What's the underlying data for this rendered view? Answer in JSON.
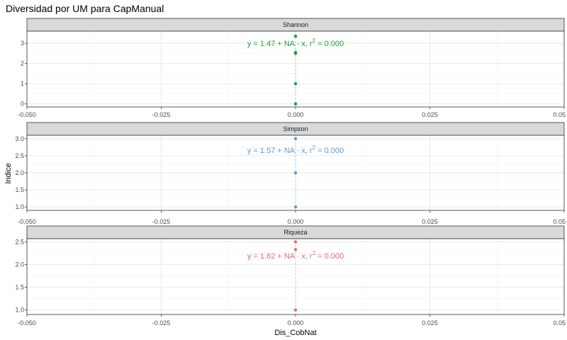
{
  "chart_data": {
    "type": "scatter",
    "title": "Diversidad por UM para CapManual",
    "xlabel": "Dis_CobNat",
    "ylabel": "Indice",
    "xlim": [
      -0.05,
      0.05
    ],
    "x_ticks": [
      -0.05,
      -0.025,
      0,
      0.025,
      0.05
    ],
    "x_tick_labels": [
      "-0.050",
      "-0.025",
      "0.000",
      "0.025",
      "0.05"
    ],
    "grid": true,
    "facet_scales": "free_y",
    "panels": [
      {
        "strip": "Shannon",
        "color": "#1aa33a",
        "ylim": [
          -0.15,
          3.6
        ],
        "y_ticks": [
          0,
          1,
          2,
          3
        ],
        "y_tick_labels": [
          "0",
          "1",
          "2",
          "3"
        ],
        "points": [
          {
            "x": 0,
            "y": 0.0
          },
          {
            "x": 0,
            "y": 1.0
          },
          {
            "x": 0,
            "y": 2.5
          },
          {
            "x": 0,
            "y": 2.55
          },
          {
            "x": 0,
            "y": 3.35
          }
        ],
        "equation": {
          "prefix": "y = 1.47 + NA · x,  r",
          "exp": "2",
          "suffix": " = 0.000"
        }
      },
      {
        "strip": "Simpson",
        "color": "#5b9bd5",
        "ylim": [
          0.9,
          3.1
        ],
        "y_ticks": [
          1.0,
          1.5,
          2.0,
          2.5,
          3.0
        ],
        "y_tick_labels": [
          "1.0",
          "1.5",
          "2.0",
          "2.5",
          "3.0"
        ],
        "points": [
          {
            "x": 0,
            "y": 1.0
          },
          {
            "x": 0,
            "y": 2.0
          },
          {
            "x": 0,
            "y": 3.0
          }
        ],
        "equation": {
          "prefix": "y = 1.57 + NA · x,  r",
          "exp": "2",
          "suffix": " = 0.000"
        }
      },
      {
        "strip": "Riqueza",
        "color": "#e36a6a",
        "ylim": [
          0.9,
          2.57
        ],
        "y_ticks": [
          1.0,
          1.5,
          2.0,
          2.5
        ],
        "y_tick_labels": [
          "1.0",
          "1.5",
          "2.0",
          "2.5"
        ],
        "points": [
          {
            "x": 0,
            "y": 1.0
          },
          {
            "x": 0,
            "y": 2.33
          },
          {
            "x": 0,
            "y": 2.5
          }
        ],
        "equation": {
          "prefix": "y = 1.62 + NA · x,  r",
          "exp": "2",
          "suffix": " = 0.000"
        }
      }
    ]
  }
}
